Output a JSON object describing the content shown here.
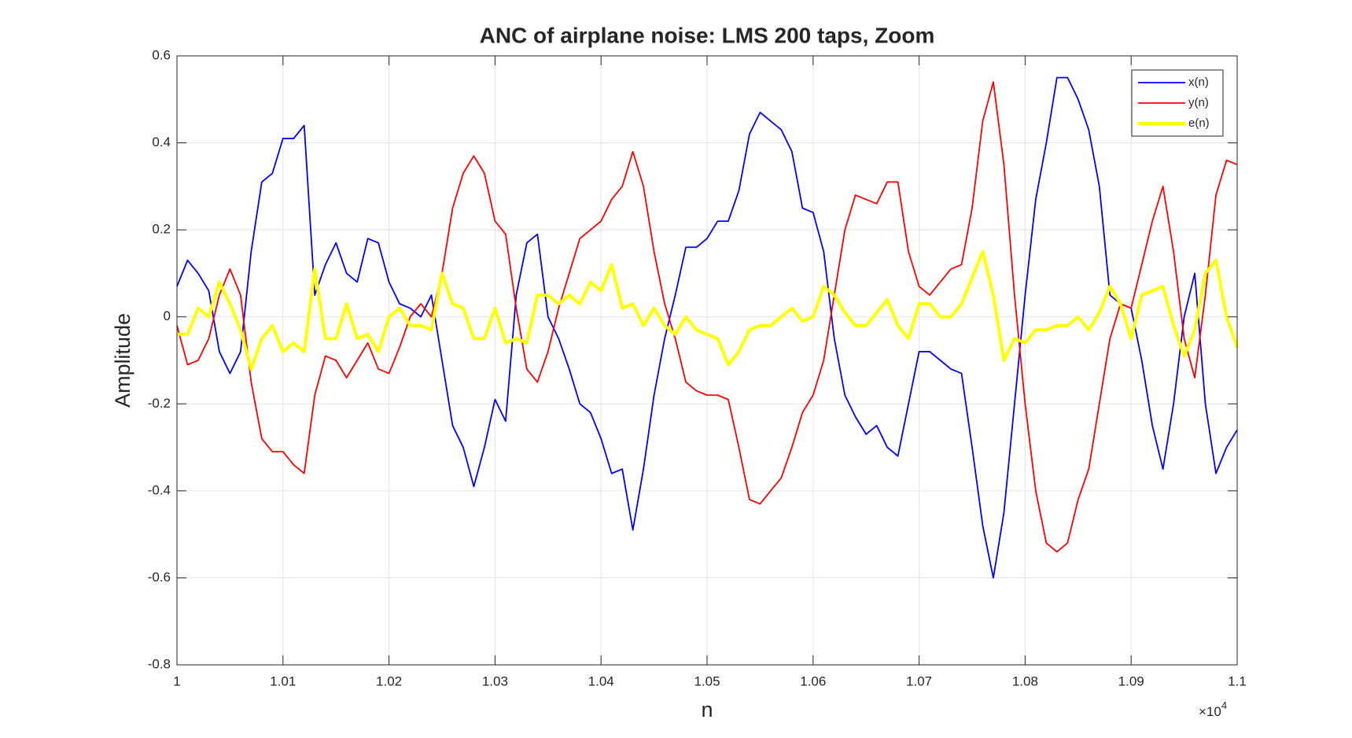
{
  "chart_data": {
    "type": "line",
    "title": "ANC of airplane noise: LMS 200 taps, Zoom",
    "xlabel": "n",
    "ylabel": "Amplitude",
    "x_multiplier": {
      "base": "×10",
      "exponent": "4"
    },
    "xlim": [
      10000,
      11000
    ],
    "ylim": [
      -0.8,
      0.6
    ],
    "xticks": [
      {
        "value": 10000,
        "label": "1"
      },
      {
        "value": 10100,
        "label": "1.01"
      },
      {
        "value": 10200,
        "label": "1.02"
      },
      {
        "value": 10300,
        "label": "1.03"
      },
      {
        "value": 10400,
        "label": "1.04"
      },
      {
        "value": 10500,
        "label": "1.05"
      },
      {
        "value": 10600,
        "label": "1.06"
      },
      {
        "value": 10700,
        "label": "1.07"
      },
      {
        "value": 10800,
        "label": "1.08"
      },
      {
        "value": 10900,
        "label": "1.09"
      },
      {
        "value": 11000,
        "label": "1.1"
      }
    ],
    "yticks": [
      -0.8,
      -0.6,
      -0.4,
      -0.2,
      0,
      0.2,
      0.4,
      0.6
    ],
    "grid": true,
    "legend": "northeast",
    "x": [
      10000,
      10010,
      10020,
      10030,
      10040,
      10050,
      10060,
      10070,
      10080,
      10090,
      10100,
      10110,
      10120,
      10130,
      10140,
      10150,
      10160,
      10170,
      10180,
      10190,
      10200,
      10210,
      10220,
      10230,
      10240,
      10250,
      10260,
      10270,
      10280,
      10290,
      10300,
      10310,
      10320,
      10330,
      10340,
      10350,
      10360,
      10370,
      10380,
      10390,
      10400,
      10410,
      10420,
      10430,
      10440,
      10450,
      10460,
      10470,
      10480,
      10490,
      10500,
      10510,
      10520,
      10530,
      10540,
      10550,
      10560,
      10570,
      10580,
      10590,
      10600,
      10610,
      10620,
      10630,
      10640,
      10650,
      10660,
      10670,
      10680,
      10690,
      10700,
      10710,
      10720,
      10730,
      10740,
      10750,
      10760,
      10770,
      10780,
      10790,
      10800,
      10810,
      10820,
      10830,
      10840,
      10850,
      10860,
      10870,
      10880,
      10890,
      10900,
      10910,
      10920,
      10930,
      10940,
      10950,
      10960,
      10970,
      10980,
      10990,
      11000
    ],
    "series": [
      {
        "name": "x(n)",
        "color": "#0000ff",
        "width": 1.8,
        "values": [
          0.07,
          0.13,
          0.1,
          0.06,
          -0.08,
          -0.13,
          -0.08,
          0.15,
          0.31,
          0.33,
          0.41,
          0.41,
          0.44,
          0.05,
          0.12,
          0.17,
          0.1,
          0.08,
          0.18,
          0.17,
          0.08,
          0.03,
          0.02,
          0.0,
          0.05,
          -0.1,
          -0.25,
          -0.3,
          -0.39,
          -0.3,
          -0.19,
          -0.24,
          0.05,
          0.17,
          0.19,
          0.0,
          -0.05,
          -0.12,
          -0.2,
          -0.22,
          -0.28,
          -0.36,
          -0.35,
          -0.49,
          -0.35,
          -0.18,
          -0.05,
          0.05,
          0.16,
          0.16,
          0.18,
          0.22,
          0.22,
          0.29,
          0.42,
          0.47,
          0.45,
          0.43,
          0.38,
          0.25,
          0.24,
          0.15,
          -0.05,
          -0.18,
          -0.23,
          -0.27,
          -0.25,
          -0.3,
          -0.32,
          -0.2,
          -0.08,
          -0.08,
          -0.1,
          -0.12,
          -0.13,
          -0.3,
          -0.48,
          -0.6,
          -0.45,
          -0.2,
          0.05,
          0.27,
          0.4,
          0.55,
          0.55,
          0.5,
          0.43,
          0.3,
          0.05,
          0.03,
          0.02,
          -0.1,
          -0.25,
          -0.35,
          -0.2,
          0.0,
          0.1,
          -0.2,
          -0.36,
          -0.3,
          -0.26
        ]
      },
      {
        "name": "y(n)",
        "color": "#ff0000",
        "width": 1.8,
        "values": [
          -0.02,
          -0.11,
          -0.1,
          -0.05,
          0.05,
          0.11,
          0.05,
          -0.15,
          -0.28,
          -0.31,
          -0.31,
          -0.34,
          -0.36,
          -0.18,
          -0.09,
          -0.1,
          -0.14,
          -0.1,
          -0.06,
          -0.12,
          -0.13,
          -0.07,
          0.0,
          0.03,
          0.0,
          0.1,
          0.25,
          0.33,
          0.37,
          0.33,
          0.22,
          0.19,
          0.02,
          -0.12,
          -0.15,
          -0.08,
          0.02,
          0.1,
          0.18,
          0.2,
          0.22,
          0.27,
          0.3,
          0.38,
          0.3,
          0.15,
          0.03,
          -0.05,
          -0.15,
          -0.17,
          -0.18,
          -0.18,
          -0.19,
          -0.3,
          -0.42,
          -0.43,
          -0.4,
          -0.37,
          -0.3,
          -0.22,
          -0.18,
          -0.1,
          0.05,
          0.2,
          0.28,
          0.27,
          0.26,
          0.31,
          0.31,
          0.15,
          0.07,
          0.05,
          0.08,
          0.11,
          0.12,
          0.25,
          0.45,
          0.54,
          0.35,
          0.05,
          -0.2,
          -0.4,
          -0.52,
          -0.54,
          -0.52,
          -0.42,
          -0.35,
          -0.2,
          -0.05,
          0.03,
          0.02,
          0.12,
          0.22,
          0.3,
          0.15,
          -0.05,
          -0.14,
          0.05,
          0.28,
          0.36,
          0.35
        ]
      },
      {
        "name": "e(n)",
        "color": "#ffff00",
        "width": 4,
        "values": [
          -0.04,
          -0.04,
          0.02,
          0.0,
          0.08,
          0.03,
          -0.03,
          -0.12,
          -0.05,
          -0.02,
          -0.08,
          -0.06,
          -0.08,
          0.11,
          -0.05,
          -0.05,
          0.03,
          -0.05,
          -0.04,
          -0.08,
          0.0,
          0.02,
          -0.02,
          -0.02,
          -0.03,
          0.1,
          0.03,
          0.02,
          -0.05,
          -0.05,
          0.02,
          -0.06,
          -0.05,
          -0.06,
          0.05,
          0.05,
          0.03,
          0.05,
          0.03,
          0.08,
          0.06,
          0.12,
          0.02,
          0.03,
          -0.02,
          0.02,
          -0.02,
          -0.04,
          0.0,
          -0.03,
          -0.04,
          -0.05,
          -0.11,
          -0.08,
          -0.03,
          -0.02,
          -0.02,
          0.0,
          0.02,
          -0.01,
          0.0,
          0.07,
          0.05,
          0.01,
          -0.02,
          -0.02,
          0.01,
          0.04,
          -0.02,
          -0.05,
          0.03,
          0.03,
          0.0,
          0.0,
          0.03,
          0.09,
          0.15,
          0.05,
          -0.1,
          -0.05,
          -0.06,
          -0.03,
          -0.03,
          -0.02,
          -0.02,
          0.0,
          -0.03,
          0.01,
          0.07,
          0.03,
          -0.05,
          0.05,
          0.06,
          0.07,
          -0.02,
          -0.09,
          -0.03,
          0.1,
          0.13,
          0.0,
          -0.07
        ]
      }
    ]
  }
}
